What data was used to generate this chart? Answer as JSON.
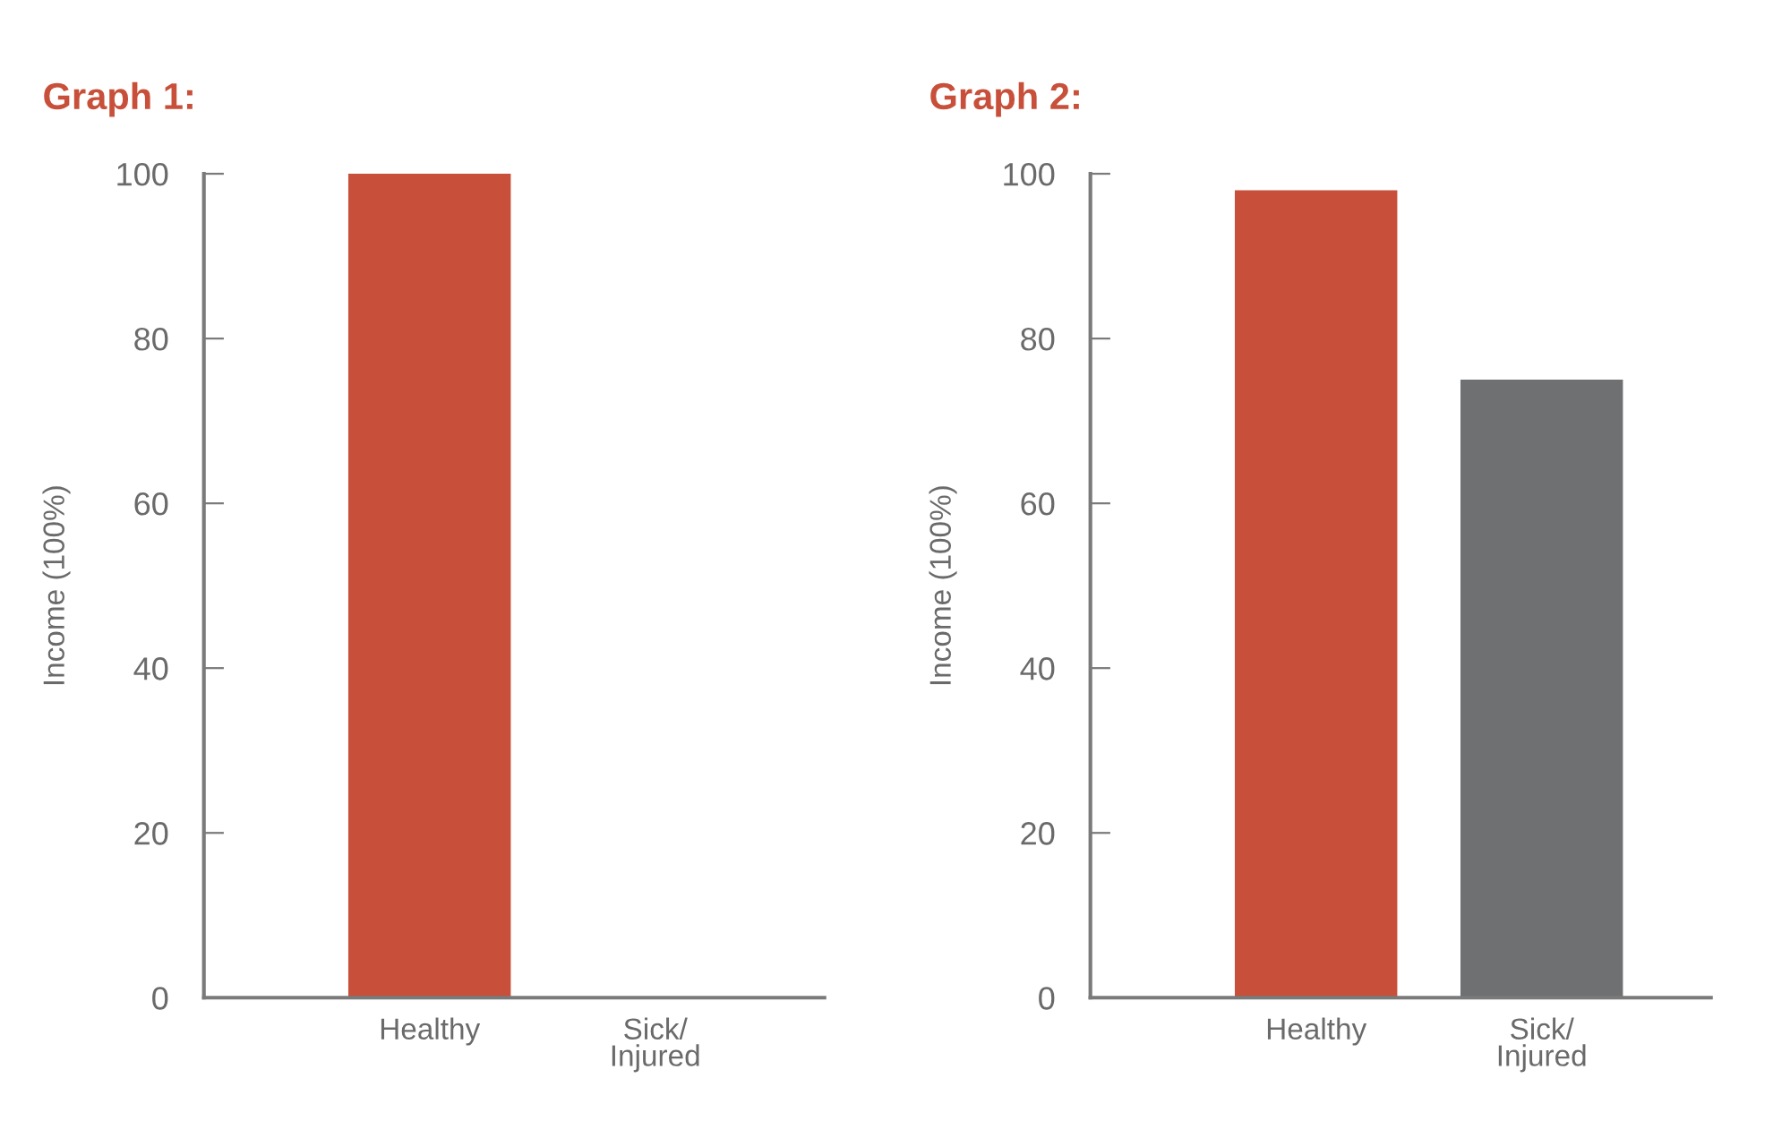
{
  "chart_data": [
    {
      "type": "bar",
      "title": "Graph 1:",
      "ylabel": "Income (100%)",
      "categories": [
        "Healthy",
        "Sick/\nInjured"
      ],
      "values": [
        100,
        0
      ],
      "colors": [
        "#c8503a",
        "#6f7072"
      ],
      "ylim": [
        0,
        100
      ],
      "yticks": [
        0,
        20,
        40,
        60,
        80,
        100
      ],
      "grid": false,
      "legend": false
    },
    {
      "type": "bar",
      "title": "Graph 2:",
      "ylabel": "Income (100%)",
      "categories": [
        "Healthy",
        "Sick/\nInjured"
      ],
      "values": [
        98,
        75
      ],
      "colors": [
        "#c8503a",
        "#6f7072"
      ],
      "ylim": [
        0,
        100
      ],
      "yticks": [
        0,
        20,
        40,
        60,
        80,
        100
      ],
      "grid": false,
      "legend": false
    }
  ]
}
